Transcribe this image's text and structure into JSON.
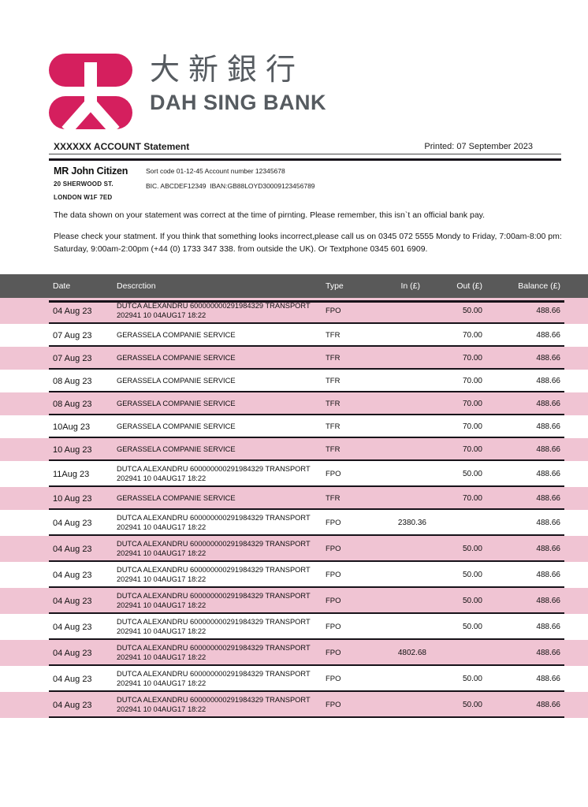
{
  "brand": {
    "logo_cn": "大新銀行",
    "logo_en": "DAH SING BANK"
  },
  "statement": {
    "title": "XXXXXX ACCOUNT Statement",
    "printed": "Printed: 07 September 2023"
  },
  "customer": {
    "name": "MR John Citizen",
    "address_line1": "20 SHERWOOD ST.",
    "address_line2": "LONDON W1F 7ED"
  },
  "account": {
    "line1": "Sort code 01-12-45 Account number 12345678",
    "line2": "BIC. ABCDEF12349  IBAN:GB88LOYD30009123456789"
  },
  "notes": {
    "p1": "The data shown on your statement was correct at the time of pirnting. Please remember, this isn`t an official bank pay.",
    "p2": "Please check your statment. If you think that something looks incorrect,please call us on 0345 072 5555 Mondy to Friday, 7:00am-8:00 pm: Saturday, 9:00am-2:00pm (+44 (0) 1733 347 338. from outside the UK). Or Textphone 0345 601 6909."
  },
  "table": {
    "headers": [
      "Date",
      "Descrction",
      "Type",
      "In (£)",
      "Out (£)",
      "Balance (£)"
    ],
    "rows": [
      {
        "date": "04 Aug 23",
        "desc": "DUTCA ALEXANDRU 600000000291984329 TRANSPORT",
        "desc2": "202941 10 04AUG17 18:22",
        "type": "FPO",
        "in": "",
        "out": "50.00",
        "balance": "488.66"
      },
      {
        "date": "07 Aug 23",
        "desc": "GERASSELA COMPANIE SERVICE",
        "desc2": "",
        "type": "TFR",
        "in": "",
        "out": "70.00",
        "balance": "488.66"
      },
      {
        "date": "07 Aug 23",
        "desc": "GERASSELA COMPANIE SERVICE",
        "desc2": "",
        "type": "TFR",
        "in": "",
        "out": "70.00",
        "balance": "488.66"
      },
      {
        "date": "08 Aug 23",
        "desc": "GERASSELA COMPANIE SERVICE",
        "desc2": "",
        "type": "TFR",
        "in": "",
        "out": "70.00",
        "balance": "488.66"
      },
      {
        "date": "08 Aug 23",
        "desc": "GERASSELA COMPANIE SERVICE",
        "desc2": "",
        "type": "TFR",
        "in": "",
        "out": "70.00",
        "balance": "488.66"
      },
      {
        "date": "10Aug 23",
        "desc": "GERASSELA COMPANIE SERVICE",
        "desc2": "",
        "type": "TFR",
        "in": "",
        "out": "70.00",
        "balance": "488.66"
      },
      {
        "date": "10 Aug 23",
        "desc": "GERASSELA COMPANIE SERVICE",
        "desc2": "",
        "type": "TFR",
        "in": "",
        "out": "70.00",
        "balance": "488.66"
      },
      {
        "date": "11Aug 23",
        "desc": "DUTCA ALEXANDRU 600000000291984329 TRANSPORT",
        "desc2": "202941 10 04AUG17 18:22",
        "type": "FPO",
        "in": "",
        "out": "50.00",
        "balance": "488.66"
      },
      {
        "date": "10 Aug 23",
        "desc": "GERASSELA COMPANIE SERVICE",
        "desc2": "",
        "type": "TFR",
        "in": "",
        "out": "70.00",
        "balance": "488.66"
      },
      {
        "date": "04 Aug 23",
        "desc": "DUTCA ALEXANDRU 600000000291984329 TRANSPORT",
        "desc2": "202941 10 04AUG17 18:22",
        "type": "FPO",
        "in": "2380.36",
        "out": "",
        "balance": "488.66"
      },
      {
        "date": "04 Aug 23",
        "desc": "DUTCA ALEXANDRU 600000000291984329 TRANSPORT",
        "desc2": "202941 10 04AUG17 18:22",
        "type": "FPO",
        "in": "",
        "out": "50.00",
        "balance": "488.66"
      },
      {
        "date": "04 Aug 23",
        "desc": "DUTCA ALEXANDRU 600000000291984329 TRANSPORT",
        "desc2": "202941 10 04AUG17 18:22",
        "type": "FPO",
        "in": "",
        "out": "50.00",
        "balance": "488.66"
      },
      {
        "date": "04 Aug 23",
        "desc": "DUTCA ALEXANDRU 600000000291984329 TRANSPORT",
        "desc2": "202941 10 04AUG17 18:22",
        "type": "FPO",
        "in": "",
        "out": "50.00",
        "balance": "488.66"
      },
      {
        "date": "04 Aug 23",
        "desc": "DUTCA ALEXANDRU 600000000291984329 TRANSPORT",
        "desc2": "202941 10 04AUG17 18:22",
        "type": "FPO",
        "in": "",
        "out": "50.00",
        "balance": "488.66"
      },
      {
        "date": "04 Aug 23",
        "desc": "DUTCA ALEXANDRU 600000000291984329 TRANSPORT",
        "desc2": "202941 10 04AUG17 18:22",
        "type": "FPO",
        "in": "4802.68",
        "out": "",
        "balance": "488.66"
      },
      {
        "date": "04 Aug 23",
        "desc": "DUTCA ALEXANDRU 600000000291984329 TRANSPORT",
        "desc2": "202941 10 04AUG17 18:22",
        "type": "FPO",
        "in": "",
        "out": "50.00",
        "balance": "488.66"
      },
      {
        "date": "04 Aug 23",
        "desc": "DUTCA ALEXANDRU 600000000291984329 TRANSPORT",
        "desc2": "202941 10 04AUG17 18:22",
        "type": "FPO",
        "in": "",
        "out": "50.00",
        "balance": "488.66"
      }
    ]
  },
  "colors": {
    "logo_pink": "#d51f5e",
    "row_pink": "#f0c4d3",
    "header_gray": "#595959",
    "brand_text_gray": "#565b60"
  }
}
